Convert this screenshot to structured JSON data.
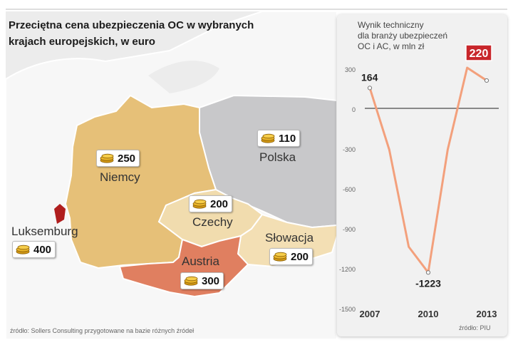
{
  "map": {
    "title_line1": "Przeciętna cena ubezpieczenia OC w wybranych",
    "title_line2": "krajach europejskich, w euro",
    "countries": [
      {
        "name": "Niemcy",
        "value": "250"
      },
      {
        "name": "Polska",
        "value": "110"
      },
      {
        "name": "Czechy",
        "value": "200"
      },
      {
        "name": "Słowacja",
        "value": "200"
      },
      {
        "name": "Austria",
        "value": "300"
      },
      {
        "name": "Luksemburg",
        "value": "400"
      }
    ],
    "source": "źródło: Sollers Consulting przygotowane na bazie różnych źródeł",
    "icon": "coin-stack-icon",
    "colors": {
      "sea": "#ececec",
      "germany": "#e6c078",
      "poland": "#c8c8ca",
      "czechia": "#f1dcae",
      "slovakia": "#f3dfb4",
      "austria": "#e07f60",
      "luxembourg": "#b01e1e"
    }
  },
  "chart_data": {
    "type": "line",
    "caption": [
      "Wynik techniczny",
      "dla branży ubezpieczeń",
      "OC i AC, w mln zł"
    ],
    "x": [
      2007,
      2008,
      2009,
      2010,
      2011,
      2012,
      2013
    ],
    "series": [
      {
        "values": [
          164,
          -300,
          -1030,
          -1223,
          -300,
          316,
          220
        ]
      }
    ],
    "ylim": [
      -1500,
      300
    ],
    "yticks": [
      "300",
      "0",
      "-300",
      "-600",
      "-900",
      "-1200",
      "-1500"
    ],
    "xticks": [
      "2007",
      "2010",
      "2013"
    ],
    "data_labels": {
      "first": "164",
      "min": "-1223",
      "last": "220"
    },
    "source": "źródło: PIU",
    "line_color": "#f3a07c",
    "highlight_color": "#c8262b",
    "zero_line": true
  }
}
